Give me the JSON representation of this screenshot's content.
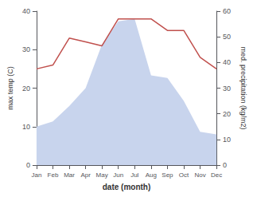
{
  "chart_data": {
    "type": "line",
    "xlabel": "date (month)",
    "ylabel": "max temp (C)",
    "y2label": "med. precipitation (kg/m2)",
    "categories": [
      "Jan",
      "Feb",
      "Mar",
      "Apr",
      "May",
      "Jun",
      "Jul",
      "Aug",
      "Sep",
      "Oct",
      "Nov",
      "Dec"
    ],
    "series": [
      {
        "type": "area",
        "axis": "y2",
        "color": "#c8d4ed",
        "values": [
          15,
          17,
          23,
          30,
          47,
          56,
          57,
          35,
          34,
          25,
          13,
          12
        ]
      },
      {
        "type": "line",
        "color": "#c0504d",
        "values": [
          25,
          26,
          33,
          32,
          31,
          38,
          38,
          38,
          35,
          35,
          28,
          25
        ]
      }
    ],
    "ylim": [
      0,
      40
    ],
    "yticks": [
      0,
      10,
      20,
      30,
      40
    ],
    "y2lim": [
      0,
      60
    ],
    "y2ticks": [
      0,
      10,
      20,
      30,
      40,
      50,
      60
    ],
    "grid": false
  }
}
